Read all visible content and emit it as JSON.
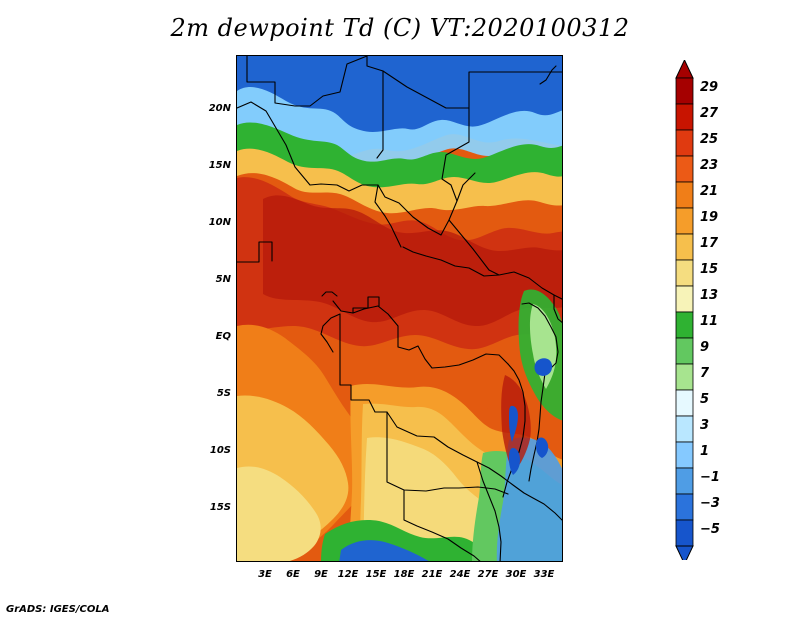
{
  "title": "2m dewpoint Td (C) VT:2020100312",
  "credit": "GrADS: IGES/COLA",
  "map": {
    "y_ticks": [
      "20N",
      "15N",
      "10N",
      "5N",
      "EQ",
      "5S",
      "10S",
      "15S"
    ],
    "x_ticks": [
      "3E",
      "6E",
      "9E",
      "12E",
      "15E",
      "18E",
      "21E",
      "24E",
      "27E",
      "30E",
      "33E"
    ]
  },
  "colorbar": {
    "labels": [
      "29",
      "27",
      "25",
      "23",
      "21",
      "19",
      "17",
      "15",
      "13",
      "11",
      "9",
      "7",
      "5",
      "3",
      "1",
      "−1",
      "−3",
      "−5"
    ],
    "colors": [
      "#a50000",
      "#c81400",
      "#e03a10",
      "#ec5a16",
      "#f07e18",
      "#f59d2a",
      "#f6bf4c",
      "#f5dd80",
      "#f7f3b8",
      "#2fb232",
      "#62c860",
      "#a7e48f",
      "#e6f9ff",
      "#b9e7ff",
      "#85c9ff",
      "#4f9de5",
      "#2b73dc",
      "#1655cc"
    ]
  }
}
